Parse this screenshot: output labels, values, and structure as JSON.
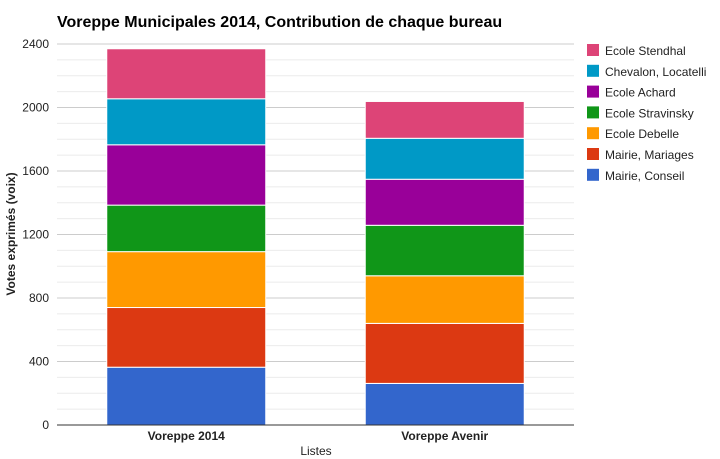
{
  "chart_data": {
    "type": "bar",
    "stacked": true,
    "title": "Voreppe Municipales 2014, Contribution de chaque bureau",
    "xlabel": "Listes",
    "ylabel": "Votes exprimés (voix)",
    "ylim": [
      0,
      2400
    ],
    "yticks": [
      0,
      400,
      800,
      1200,
      1600,
      2000,
      2400
    ],
    "grid": true,
    "legend_position": "right",
    "categories": [
      "Voreppe 2014",
      "Voreppe Avenir"
    ],
    "series": [
      {
        "name": "Mairie, Conseil",
        "color": "#3366cc",
        "values": [
          364,
          262
        ]
      },
      {
        "name": "Mairie, Mariages",
        "color": "#dc3912",
        "values": [
          376,
          378
        ]
      },
      {
        "name": "Ecole Debelle",
        "color": "#ff9900",
        "values": [
          352,
          300
        ]
      },
      {
        "name": "Ecole Stravinsky",
        "color": "#109618",
        "values": [
          293,
          318
        ]
      },
      {
        "name": "Ecole Achard",
        "color": "#990099",
        "values": [
          380,
          290
        ]
      },
      {
        "name": "Chevalon, Locatelli",
        "color": "#0099c6",
        "values": [
          290,
          258
        ]
      },
      {
        "name": "Ecole Stendhal",
        "color": "#dd4477",
        "values": [
          315,
          232
        ]
      }
    ]
  }
}
